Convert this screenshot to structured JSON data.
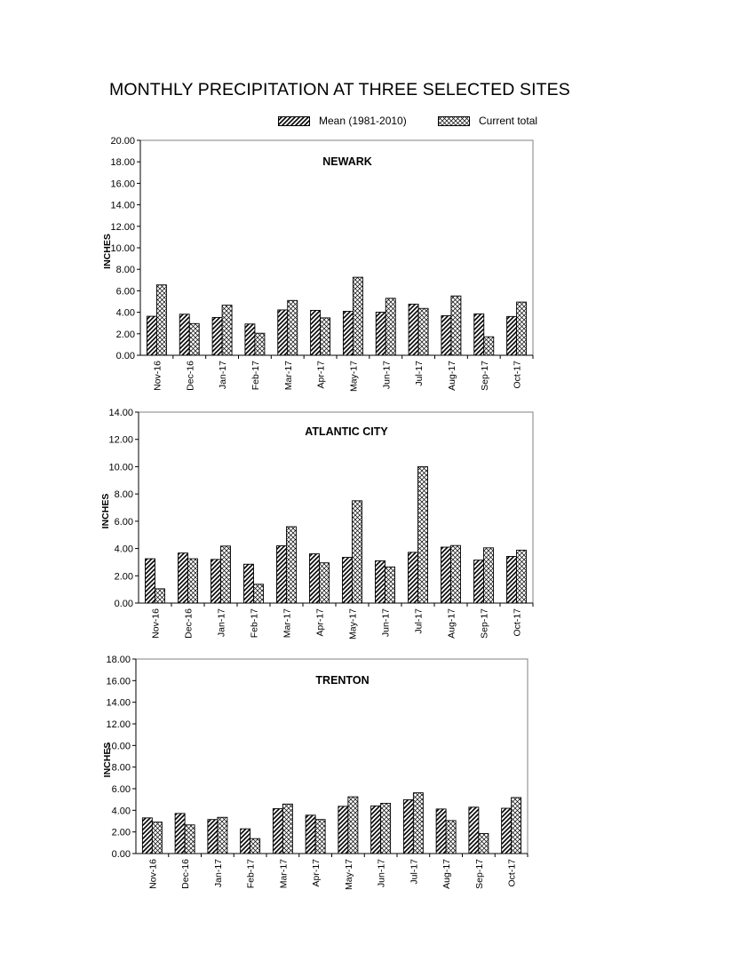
{
  "title": "MONTHLY PRECIPITATION AT THREE SELECTED SITES",
  "legend": {
    "mean_label": "Mean (1981-2010)",
    "current_label": "Current total"
  },
  "chart_data": [
    {
      "type": "bar",
      "title": "NEWARK",
      "ylabel": "INCHES",
      "ylim": [
        0,
        20
      ],
      "yticks": [
        "0.00",
        "2.00",
        "4.00",
        "6.00",
        "8.00",
        "10.00",
        "12.00",
        "14.00",
        "16.00",
        "18.00",
        "20.00"
      ],
      "categories": [
        "Nov-16",
        "Dec-16",
        "Jan-17",
        "Feb-17",
        "Mar-17",
        "Apr-17",
        "May-17",
        "Jun-17",
        "Jul-17",
        "Aug-17",
        "Sep-17",
        "Oct-17"
      ],
      "series": [
        {
          "name": "Mean (1981-2010)",
          "values": [
            3.63,
            3.82,
            3.52,
            2.91,
            4.22,
            4.18,
            4.09,
            4.01,
            4.76,
            3.68,
            3.85,
            3.61
          ]
        },
        {
          "name": "Current total",
          "values": [
            6.55,
            2.95,
            4.66,
            2.05,
            5.1,
            3.48,
            7.26,
            5.3,
            4.36,
            5.52,
            1.72,
            4.95
          ]
        }
      ]
    },
    {
      "type": "bar",
      "title": "ATLANTIC CITY",
      "ylabel": "INCHES",
      "ylim": [
        0,
        14
      ],
      "yticks": [
        "0.00",
        "2.00",
        "4.00",
        "6.00",
        "8.00",
        "10.00",
        "12.00",
        "14.00"
      ],
      "categories": [
        "Nov-16",
        "Dec-16",
        "Jan-17",
        "Feb-17",
        "Mar-17",
        "Apr-17",
        "May-17",
        "Jun-17",
        "Jul-17",
        "Aug-17",
        "Sep-17",
        "Oct-17"
      ],
      "series": [
        {
          "name": "Mean (1981-2010)",
          "values": [
            3.25,
            3.67,
            3.2,
            2.85,
            4.2,
            3.61,
            3.35,
            3.1,
            3.72,
            4.1,
            3.15,
            3.42
          ]
        },
        {
          "name": "Current total",
          "values": [
            1.05,
            3.25,
            4.18,
            1.38,
            5.6,
            2.95,
            7.5,
            2.65,
            10.0,
            4.22,
            4.05,
            3.88
          ]
        }
      ]
    },
    {
      "type": "bar",
      "title": "TRENTON",
      "ylabel": "INCHES",
      "ylim": [
        0,
        18
      ],
      "yticks": [
        "0.00",
        "2.00",
        "4.00",
        "6.00",
        "8.00",
        "10.00",
        "12.00",
        "14.00",
        "16.00",
        "18.00"
      ],
      "categories": [
        "Nov-16",
        "Dec-16",
        "Jan-17",
        "Feb-17",
        "Mar-17",
        "Apr-17",
        "May-17",
        "Jun-17",
        "Jul-17",
        "Aug-17",
        "Sep-17",
        "Oct-17"
      ],
      "series": [
        {
          "name": "Mean (1981-2010)",
          "values": [
            3.3,
            3.71,
            3.15,
            2.29,
            4.15,
            3.55,
            4.37,
            4.41,
            4.98,
            4.12,
            4.29,
            4.19
          ]
        },
        {
          "name": "Current total",
          "values": [
            2.91,
            2.65,
            3.35,
            1.38,
            4.58,
            3.15,
            5.25,
            4.65,
            5.62,
            3.05,
            1.85,
            5.18
          ]
        }
      ]
    }
  ]
}
